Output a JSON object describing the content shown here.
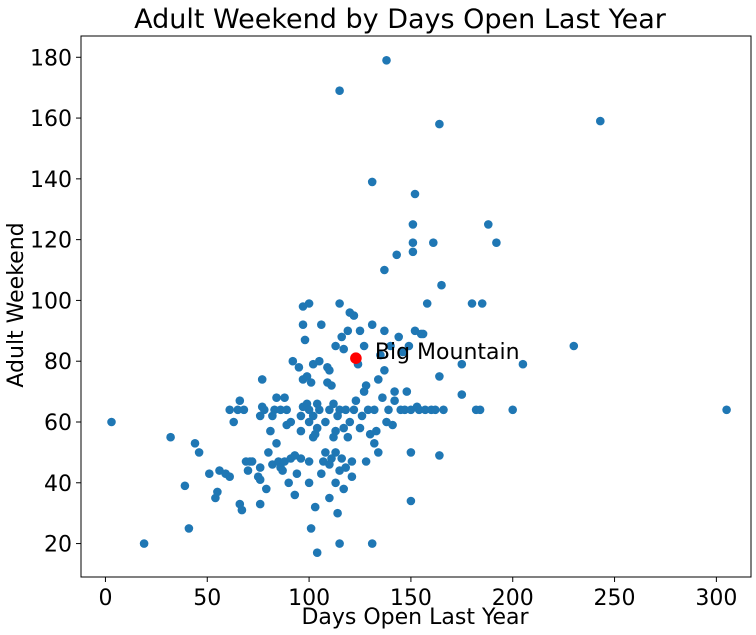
{
  "chart_data": {
    "type": "scatter",
    "title": "Adult Weekend by Days Open Last Year",
    "xlabel": "Days Open Last Year",
    "ylabel": "Adult Weekend",
    "xlim": [
      -12,
      317
    ],
    "ylim": [
      9,
      187
    ],
    "xticks": [
      0,
      50,
      100,
      150,
      200,
      250,
      300
    ],
    "yticks": [
      20,
      40,
      60,
      80,
      100,
      120,
      140,
      160,
      180
    ],
    "grid": false,
    "colors": {
      "points": "#1f77b4",
      "highlight": "#ff0000"
    },
    "highlight": {
      "label": "Big Mountain",
      "x": 123,
      "y": 81
    },
    "points": [
      [
        3,
        60
      ],
      [
        19,
        20
      ],
      [
        32,
        55
      ],
      [
        39,
        39
      ],
      [
        41,
        25
      ],
      [
        44,
        53
      ],
      [
        46,
        50
      ],
      [
        51,
        43
      ],
      [
        54,
        35
      ],
      [
        55,
        37
      ],
      [
        56,
        44
      ],
      [
        59,
        43
      ],
      [
        61,
        42
      ],
      [
        61,
        64
      ],
      [
        63,
        60
      ],
      [
        65,
        64
      ],
      [
        66,
        67
      ],
      [
        66,
        33
      ],
      [
        67,
        31
      ],
      [
        68,
        64
      ],
      [
        69,
        47
      ],
      [
        70,
        44
      ],
      [
        71,
        47
      ],
      [
        72,
        47
      ],
      [
        75,
        42
      ],
      [
        76,
        41
      ],
      [
        76,
        45
      ],
      [
        76,
        33
      ],
      [
        76,
        62
      ],
      [
        77,
        74
      ],
      [
        77,
        65
      ],
      [
        78,
        64
      ],
      [
        79,
        38
      ],
      [
        80,
        50
      ],
      [
        81,
        57
      ],
      [
        82,
        46
      ],
      [
        82,
        62
      ],
      [
        83,
        64
      ],
      [
        84,
        53
      ],
      [
        84,
        68
      ],
      [
        85,
        47
      ],
      [
        86,
        64
      ],
      [
        86,
        45
      ],
      [
        87,
        44
      ],
      [
        88,
        47
      ],
      [
        88,
        68
      ],
      [
        89,
        64
      ],
      [
        89,
        59
      ],
      [
        90,
        40
      ],
      [
        91,
        48
      ],
      [
        91,
        60
      ],
      [
        92,
        80
      ],
      [
        93,
        36
      ],
      [
        93,
        49
      ],
      [
        94,
        43
      ],
      [
        95,
        78
      ],
      [
        96,
        62
      ],
      [
        96,
        57
      ],
      [
        96,
        48
      ],
      [
        97,
        65
      ],
      [
        97,
        92
      ],
      [
        97,
        98
      ],
      [
        97,
        74
      ],
      [
        98,
        87
      ],
      [
        99,
        75
      ],
      [
        99,
        66
      ],
      [
        100,
        40
      ],
      [
        100,
        99
      ],
      [
        100,
        60
      ],
      [
        100,
        64
      ],
      [
        100,
        47
      ],
      [
        101,
        25
      ],
      [
        101,
        73
      ],
      [
        102,
        79
      ],
      [
        102,
        55
      ],
      [
        102,
        62
      ],
      [
        103,
        32
      ],
      [
        103,
        56
      ],
      [
        104,
        17
      ],
      [
        104,
        58
      ],
      [
        104,
        66
      ],
      [
        105,
        80
      ],
      [
        105,
        64
      ],
      [
        106,
        43
      ],
      [
        106,
        92
      ],
      [
        107,
        47
      ],
      [
        108,
        60
      ],
      [
        108,
        50
      ],
      [
        109,
        78
      ],
      [
        109,
        73
      ],
      [
        110,
        64
      ],
      [
        110,
        77
      ],
      [
        110,
        46
      ],
      [
        110,
        35
      ],
      [
        111,
        48
      ],
      [
        111,
        72
      ],
      [
        112,
        55
      ],
      [
        112,
        66
      ],
      [
        113,
        40
      ],
      [
        113,
        57
      ],
      [
        113,
        85
      ],
      [
        113,
        50
      ],
      [
        114,
        30
      ],
      [
        114,
        62
      ],
      [
        115,
        44
      ],
      [
        115,
        99
      ],
      [
        115,
        20
      ],
      [
        115,
        169
      ],
      [
        115,
        64
      ],
      [
        116,
        88
      ],
      [
        116,
        48
      ],
      [
        117,
        38
      ],
      [
        117,
        58
      ],
      [
        117,
        84
      ],
      [
        118,
        64
      ],
      [
        118,
        45
      ],
      [
        119,
        90
      ],
      [
        119,
        55
      ],
      [
        120,
        96
      ],
      [
        120,
        60
      ],
      [
        121,
        47
      ],
      [
        121,
        42
      ],
      [
        122,
        95
      ],
      [
        122,
        64
      ],
      [
        123,
        67
      ],
      [
        124,
        79
      ],
      [
        125,
        58
      ],
      [
        125,
        90
      ],
      [
        126,
        62
      ],
      [
        127,
        85
      ],
      [
        127,
        70
      ],
      [
        128,
        72
      ],
      [
        128,
        47
      ],
      [
        129,
        64
      ],
      [
        130,
        56
      ],
      [
        131,
        92
      ],
      [
        131,
        139
      ],
      [
        131,
        20
      ],
      [
        132,
        64
      ],
      [
        132,
        53
      ],
      [
        133,
        57
      ],
      [
        134,
        74
      ],
      [
        134,
        50
      ],
      [
        135,
        82
      ],
      [
        136,
        68
      ],
      [
        137,
        110
      ],
      [
        137,
        90
      ],
      [
        137,
        77
      ],
      [
        138,
        179
      ],
      [
        138,
        60
      ],
      [
        139,
        64
      ],
      [
        140,
        85
      ],
      [
        141,
        59
      ],
      [
        142,
        67
      ],
      [
        142,
        70
      ],
      [
        143,
        115
      ],
      [
        144,
        88
      ],
      [
        145,
        64
      ],
      [
        146,
        83
      ],
      [
        147,
        64
      ],
      [
        148,
        70
      ],
      [
        149,
        85
      ],
      [
        150,
        64
      ],
      [
        150,
        34
      ],
      [
        150,
        50
      ],
      [
        151,
        116
      ],
      [
        151,
        119
      ],
      [
        151,
        125
      ],
      [
        152,
        135
      ],
      [
        152,
        90
      ],
      [
        153,
        65
      ],
      [
        154,
        64
      ],
      [
        155,
        89
      ],
      [
        156,
        89
      ],
      [
        157,
        64
      ],
      [
        158,
        99
      ],
      [
        160,
        64
      ],
      [
        161,
        119
      ],
      [
        162,
        64
      ],
      [
        164,
        75
      ],
      [
        164,
        49
      ],
      [
        164,
        158
      ],
      [
        165,
        105
      ],
      [
        166,
        64
      ],
      [
        175,
        79
      ],
      [
        175,
        69
      ],
      [
        180,
        99
      ],
      [
        182,
        64
      ],
      [
        184,
        64
      ],
      [
        185,
        99
      ],
      [
        188,
        125
      ],
      [
        192,
        119
      ],
      [
        200,
        64
      ],
      [
        205,
        79
      ],
      [
        230,
        85
      ],
      [
        243,
        159
      ],
      [
        305,
        64
      ]
    ]
  }
}
